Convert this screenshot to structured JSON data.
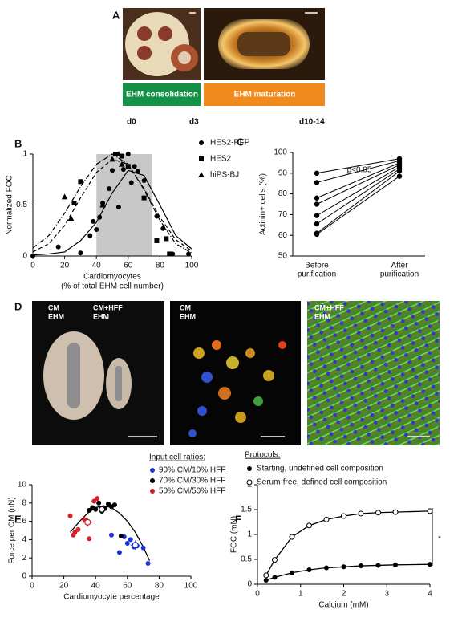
{
  "panel_a": {
    "label": "A",
    "captions": [
      "EHM consolidation",
      "EHM maturation"
    ],
    "caption_colors": [
      "#139147",
      "#f08a1c"
    ],
    "days": [
      "d0",
      "d3",
      "d10-14"
    ]
  },
  "panel_d": {
    "label": "D",
    "photo_labels": [
      [
        "CM",
        "EHM"
      ],
      [
        "CM+HFF",
        "EHM"
      ],
      [
        "CM",
        "EHM"
      ],
      [
        "CM+HFF",
        "EHM"
      ]
    ]
  },
  "chart_data": [
    {
      "type": "scatter",
      "label": "B",
      "ylabel": "Normalized FOC",
      "xlabel": [
        "Cardiomyocytes",
        "(% of total EHM cell number)"
      ],
      "xlim": [
        0,
        100
      ],
      "xticks": [
        0,
        20,
        40,
        60,
        80,
        100
      ],
      "ylim": [
        0,
        1
      ],
      "yticks": [
        0,
        0.5,
        1
      ],
      "shaded": [
        40,
        75
      ],
      "series": [
        {
          "name": "HES2-RFP",
          "marker": "circle",
          "color": "#000000",
          "x": [
            0,
            16,
            30,
            36,
            38,
            40,
            42,
            44,
            48,
            50,
            54,
            57,
            60,
            62,
            64,
            66,
            70,
            78,
            82,
            88,
            98
          ],
          "values": [
            0,
            0.09,
            0.03,
            0.2,
            0.34,
            0.26,
            0.38,
            0.52,
            0.66,
            0.84,
            0.48,
            0.85,
            1.0,
            0.72,
            0.88,
            0.83,
            0.74,
            0.39,
            0.27,
            0.02,
            0.02
          ],
          "fit": {
            "dash": "none",
            "x": [
              0,
              10,
              20,
              30,
              40,
              50,
              60,
              70,
              80,
              90,
              100
            ],
            "values": [
              0.01,
              0.02,
              0.04,
              0.15,
              0.33,
              0.62,
              0.84,
              0.79,
              0.5,
              0.2,
              0.07
            ]
          }
        },
        {
          "name": "HES2",
          "marker": "square",
          "color": "#000000",
          "x": [
            26,
            30,
            52,
            56,
            60,
            70,
            78,
            84,
            86
          ],
          "values": [
            0.52,
            0.73,
            1.0,
            0.98,
            0.88,
            0.57,
            0.15,
            0.17,
            0.02
          ],
          "fit": {
            "dash": "5,3",
            "x": [
              0,
              10,
              20,
              30,
              40,
              50,
              60,
              70,
              80,
              90,
              100
            ],
            "values": [
              0.04,
              0.12,
              0.3,
              0.57,
              0.82,
              0.95,
              0.9,
              0.66,
              0.38,
              0.16,
              0.05
            ]
          }
        },
        {
          "name": "hiPS-BJ",
          "marker": "triangle",
          "color": "#000000",
          "x": [
            20,
            24,
            44,
            50,
            54,
            56
          ],
          "values": [
            0.58,
            0.37,
            0.5,
            0.95,
            1.0,
            0.9
          ],
          "fit": {
            "dash": "6,2,1,2",
            "x": [
              0,
              10,
              20,
              30,
              40,
              50,
              60,
              70,
              80,
              90,
              100
            ],
            "values": [
              0.08,
              0.2,
              0.42,
              0.68,
              0.9,
              1.0,
              0.9,
              0.65,
              0.35,
              0.12,
              0.03
            ]
          }
        }
      ]
    },
    {
      "type": "paired",
      "label": "C",
      "annotation": "p<0.05",
      "ylabel": "Actinin+ cells (%)",
      "categories": [
        [
          "Before",
          "purification"
        ],
        [
          "After",
          "purification"
        ]
      ],
      "ylim": [
        50,
        100
      ],
      "yticks": [
        50,
        60,
        70,
        80,
        90,
        100
      ],
      "pairs": [
        [
          90,
          97
        ],
        [
          85.5,
          96
        ],
        [
          78,
          95
        ],
        [
          75,
          94
        ],
        [
          69.5,
          93
        ],
        [
          65.5,
          92
        ],
        [
          61,
          91
        ],
        [
          60.5,
          88.5
        ]
      ]
    },
    {
      "type": "scatter",
      "label": "E",
      "legend_title": "Input cell ratios:",
      "ylabel": "Force per CM (nN)",
      "xlabel": "Cardiomyocyte percentage",
      "xlim": [
        0,
        100
      ],
      "xticks": [
        0,
        20,
        40,
        60,
        80,
        100
      ],
      "ylim": [
        0,
        10
      ],
      "yticks": [
        0,
        2,
        4,
        6,
        8,
        10
      ],
      "series": [
        {
          "name": "90% CM/10% HFF",
          "color": "#1f33d6",
          "x": [
            50,
            55,
            58,
            60,
            62,
            64,
            66,
            70,
            73
          ],
          "values": [
            4.5,
            2.6,
            4.3,
            3.6,
            4.0,
            3.2,
            3.3,
            3.1,
            1.4
          ],
          "mean": {
            "x": 65,
            "value": 3.4,
            "xerr": 3,
            "yerr": 0.5
          }
        },
        {
          "name": "70% CM/30% HFF",
          "color": "#000000",
          "x": [
            36,
            38,
            40,
            42,
            44,
            46,
            48,
            50,
            52,
            56
          ],
          "values": [
            7.2,
            7.5,
            7.3,
            8.0,
            7.1,
            7.4,
            7.9,
            7.6,
            7.8,
            4.4
          ],
          "mean": {
            "x": 44,
            "value": 7.3,
            "xerr": 2,
            "yerr": 0.4
          }
        },
        {
          "name": "50% CM/50% HFF",
          "color": "#d42027",
          "x": [
            24,
            26,
            27,
            29,
            33,
            36,
            39,
            41
          ],
          "values": [
            6.6,
            4.5,
            4.8,
            5.1,
            6.2,
            4.1,
            8.2,
            8.5
          ],
          "mean": {
            "x": 35,
            "value": 5.9,
            "xerr": 3,
            "yerr": 0.5
          }
        }
      ],
      "fit": {
        "x": [
          24,
          30,
          35,
          40,
          45,
          50,
          55,
          60,
          65,
          70,
          74
        ],
        "values": [
          4.8,
          6.0,
          6.9,
          7.5,
          7.7,
          7.5,
          6.9,
          6.0,
          4.8,
          3.2,
          1.7
        ]
      }
    },
    {
      "type": "line",
      "label": "F",
      "legend_title": "Protocols:",
      "ylabel": "FOC (mN)",
      "xlabel": "Calcium (mM)",
      "annotation": "*",
      "x": [
        0.2,
        0.4,
        0.8,
        1.2,
        1.6,
        2.0,
        2.4,
        2.8,
        3.2,
        4.0
      ],
      "xlim": [
        0,
        4
      ],
      "xticks": [
        0,
        1,
        2,
        3,
        4
      ],
      "ylim": [
        0,
        2
      ],
      "yticks": [
        0,
        0.5,
        1,
        1.5,
        2
      ],
      "series": [
        {
          "name": "Starting, undefined cell composition",
          "marker": "filled",
          "color": "#000000",
          "values": [
            0.08,
            0.14,
            0.23,
            0.29,
            0.33,
            0.35,
            0.37,
            0.38,
            0.39,
            0.4
          ],
          "errors": [
            0.02,
            0.03,
            0.03,
            0.04,
            0.04,
            0.04,
            0.05,
            0.05,
            0.05,
            0.05
          ]
        },
        {
          "name": "Serum-free, defined cell composition",
          "marker": "open",
          "color": "#000000",
          "values": [
            0.18,
            0.49,
            0.95,
            1.18,
            1.3,
            1.37,
            1.42,
            1.44,
            1.45,
            1.47
          ],
          "errors": [
            0.03,
            0.03,
            0.04,
            0.05,
            0.05,
            0.05,
            0.05,
            0.05,
            0.05,
            0.05
          ]
        }
      ]
    }
  ]
}
